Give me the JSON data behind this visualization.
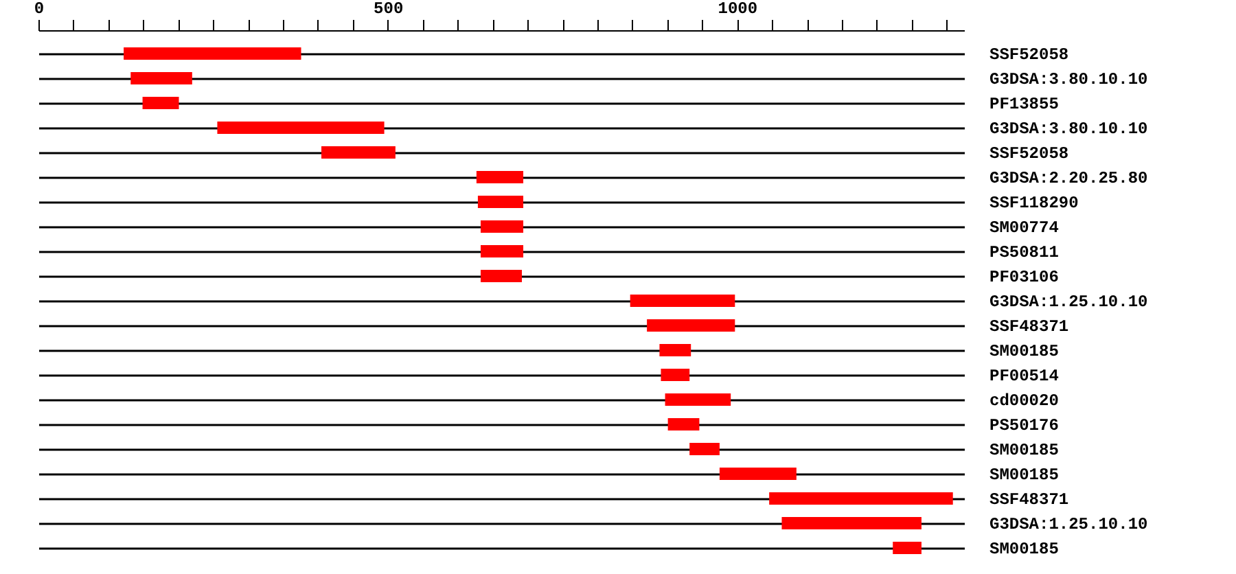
{
  "chart_data": {
    "type": "bar",
    "orientation": "horizontal",
    "categories": [
      "SSF52058",
      "G3DSA:3.80.10.10",
      "PF13855",
      "G3DSA:3.80.10.10",
      "SSF52058",
      "G3DSA:2.20.25.80",
      "SSF118290",
      "SM00774",
      "PS50811",
      "PF03106",
      "G3DSA:1.25.10.10",
      "SSF48371",
      "SM00185",
      "PF00514",
      "cd00020",
      "PS50176",
      "SM00185",
      "SM00185",
      "SSF48371",
      "G3DSA:1.25.10.10",
      "SM00185"
    ],
    "base": [
      122,
      132,
      149,
      256,
      405,
      627,
      629,
      633,
      633,
      633,
      847,
      871,
      889,
      891,
      897,
      901,
      932,
      975,
      1046,
      1064,
      1223
    ],
    "values": [
      254,
      88,
      52,
      239,
      106,
      67,
      65,
      61,
      61,
      59,
      150,
      126,
      45,
      41,
      94,
      45,
      43,
      110,
      263,
      200,
      41
    ],
    "colors": [
      "#ff0000",
      "#ff0000",
      "#ff0000",
      "#ff0000",
      "#ff0000",
      "#ff0000",
      "#ff0000",
      "#ff0000",
      "#ff0000",
      "#ff0000",
      "#ff0000",
      "#ff0000",
      "#ff0000",
      "#ff0000",
      "#ff0000",
      "#ff0000",
      "#ff0000",
      "#ff0000",
      "#ff0000",
      "#ff0000",
      "#ff0000"
    ],
    "xlim": [
      0,
      1325
    ],
    "xticks": [
      0,
      {
        "value": 50,
        "label": null
      },
      {
        "value": 100,
        "label": null
      },
      {
        "value": 150,
        "label": null
      },
      {
        "value": 200,
        "label": null
      },
      {
        "value": 250,
        "label": null
      },
      {
        "value": 300,
        "label": null
      },
      {
        "value": 350,
        "label": null
      },
      {
        "value": 400,
        "label": null
      },
      {
        "value": 450,
        "label": null
      },
      500,
      {
        "value": 550,
        "label": null
      },
      {
        "value": 600,
        "label": null
      },
      {
        "value": 650,
        "label": null
      },
      {
        "value": 700,
        "label": null
      },
      {
        "value": 750,
        "label": null
      },
      {
        "value": 800,
        "label": null
      },
      {
        "value": 850,
        "label": null
      },
      {
        "value": 900,
        "label": null
      },
      {
        "value": 950,
        "label": null
      },
      1000,
      {
        "value": 1050,
        "label": null
      },
      {
        "value": 1100,
        "label": null
      },
      {
        "value": 1150,
        "label": null
      },
      {
        "value": 1200,
        "label": null
      },
      {
        "value": 1250,
        "label": null
      },
      {
        "value": 1300,
        "label": null
      }
    ],
    "grid": "y"
  }
}
